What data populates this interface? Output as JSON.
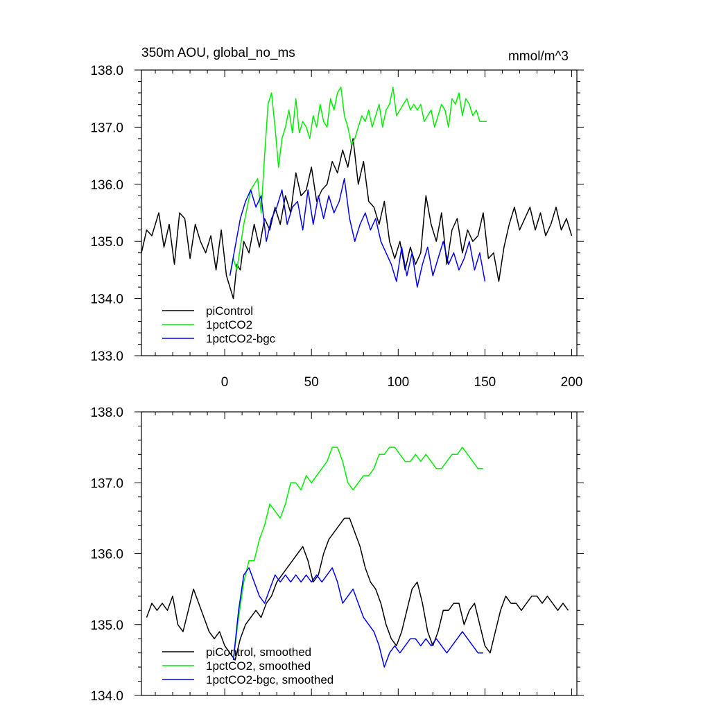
{
  "colors": {
    "piControl": "#000000",
    "1pctCO2": "#00ee00",
    "1pctCO2-bgc": "#0000ee"
  },
  "chart_data": [
    {
      "type": "line",
      "title": "350m AOU, global_no_ms",
      "title_right": "mmol/m^3",
      "xlim": [
        -48,
        203
      ],
      "ylim": [
        133.0,
        138.0
      ],
      "xticks": [
        0,
        50,
        100,
        150,
        200
      ],
      "xtick_labels": [
        "0",
        "50",
        "100",
        "150",
        "200"
      ],
      "yticks": [
        133.0,
        134.0,
        135.0,
        136.0,
        137.0,
        138.0
      ],
      "ytick_labels": [
        "133.0",
        "134.0",
        "135.0",
        "136.0",
        "137.0",
        "138.0"
      ],
      "legend_position": "bottom-left",
      "series": [
        {
          "name": "piControl",
          "color_key": "piControl",
          "x": [
            -48,
            -45,
            -42,
            -38,
            -35,
            -32,
            -29,
            -26,
            -23,
            -20,
            -17,
            -14,
            -11,
            -8,
            -5,
            -2,
            1,
            3,
            5,
            7,
            9,
            11,
            14,
            17,
            20,
            23,
            26,
            29,
            32,
            35,
            38,
            41,
            44,
            47,
            50,
            53,
            56,
            59,
            62,
            65,
            68,
            71,
            74,
            77,
            80,
            83,
            86,
            89,
            92,
            95,
            98,
            101,
            104,
            107,
            110,
            113,
            116,
            119,
            122,
            125,
            128,
            131,
            134,
            137,
            140,
            143,
            146,
            149,
            152,
            155,
            158,
            161,
            164,
            167,
            170,
            173,
            176,
            179,
            182,
            185,
            188,
            191,
            194,
            197,
            200
          ],
          "y": [
            134.8,
            135.2,
            135.1,
            135.5,
            134.9,
            135.3,
            134.6,
            135.5,
            135.4,
            134.7,
            135.3,
            135.0,
            134.8,
            135.1,
            134.5,
            135.2,
            134.4,
            134.2,
            134.0,
            134.6,
            134.5,
            135.0,
            134.8,
            135.3,
            134.9,
            135.4,
            135.2,
            135.6,
            135.3,
            135.8,
            135.5,
            136.2,
            135.8,
            135.9,
            136.3,
            135.7,
            135.9,
            136.0,
            136.4,
            136.2,
            136.6,
            136.3,
            136.8,
            136.0,
            136.4,
            135.7,
            135.6,
            135.3,
            135.7,
            135.0,
            134.7,
            135.0,
            134.5,
            134.9,
            134.6,
            134.8,
            135.8,
            135.3,
            135.0,
            135.5,
            134.6,
            135.2,
            135.4,
            134.8,
            135.2,
            135.0,
            135.1,
            135.5,
            134.7,
            134.8,
            134.3,
            134.9,
            135.3,
            135.6,
            135.2,
            135.4,
            135.6,
            135.2,
            135.5,
            135.1,
            135.3,
            135.6,
            135.2,
            135.4,
            135.1
          ]
        },
        {
          "name": "1pctCO2",
          "color_key": "1pctCO2",
          "x": [
            3,
            5,
            7,
            9,
            11,
            13,
            15,
            17,
            19,
            21,
            23,
            25,
            27,
            29,
            31,
            33,
            35,
            37,
            39,
            41,
            43,
            45,
            47,
            49,
            51,
            53,
            55,
            57,
            59,
            61,
            63,
            65,
            67,
            69,
            71,
            73,
            75,
            77,
            79,
            81,
            83,
            85,
            87,
            89,
            91,
            93,
            95,
            97,
            99,
            101,
            103,
            105,
            107,
            109,
            111,
            113,
            115,
            117,
            119,
            121,
            123,
            125,
            127,
            129,
            131,
            133,
            135,
            137,
            139,
            141,
            143,
            145,
            147,
            149,
            151
          ],
          "y": [
            134.4,
            134.7,
            134.5,
            134.9,
            135.3,
            135.6,
            135.9,
            136.0,
            136.1,
            135.5,
            136.5,
            137.4,
            137.6,
            137.0,
            136.3,
            136.8,
            137.0,
            137.3,
            136.9,
            137.5,
            136.9,
            137.1,
            137.0,
            136.8,
            137.2,
            137.0,
            137.4,
            137.1,
            137.0,
            137.5,
            137.3,
            137.6,
            137.7,
            137.2,
            137.0,
            136.7,
            136.8,
            137.0,
            137.2,
            137.1,
            137.3,
            137.0,
            137.2,
            137.4,
            137.0,
            137.3,
            137.4,
            137.7,
            137.2,
            137.3,
            137.4,
            137.5,
            137.3,
            137.4,
            137.3,
            137.4,
            137.1,
            137.2,
            137.3,
            137.0,
            137.2,
            137.4,
            137.3,
            137.0,
            137.5,
            137.4,
            137.6,
            137.2,
            137.5,
            137.4,
            137.2,
            137.3,
            137.1,
            137.1,
            137.1
          ]
        },
        {
          "name": "1pctCO2-bgc",
          "color_key": "1pctCO2-bgc",
          "x": [
            3,
            6,
            9,
            12,
            15,
            18,
            21,
            24,
            27,
            30,
            33,
            36,
            39,
            42,
            45,
            48,
            51,
            54,
            57,
            60,
            63,
            66,
            69,
            72,
            75,
            78,
            81,
            84,
            87,
            90,
            93,
            96,
            99,
            102,
            105,
            108,
            111,
            114,
            117,
            120,
            123,
            126,
            129,
            132,
            135,
            138,
            141,
            144,
            147,
            150
          ],
          "y": [
            134.4,
            134.9,
            135.4,
            135.7,
            135.9,
            135.6,
            135.8,
            135.0,
            135.4,
            135.6,
            135.9,
            135.3,
            135.6,
            135.7,
            135.2,
            135.9,
            135.3,
            135.8,
            135.4,
            135.8,
            135.5,
            135.7,
            136.1,
            135.4,
            135.0,
            135.3,
            135.5,
            135.2,
            135.4,
            135.0,
            134.8,
            134.6,
            134.3,
            134.9,
            134.4,
            134.8,
            134.2,
            134.6,
            134.9,
            134.4,
            134.7,
            135.0,
            134.6,
            134.8,
            134.5,
            134.7,
            135.0,
            134.5,
            134.8,
            134.3
          ]
        }
      ]
    },
    {
      "type": "line",
      "xlim": [
        -48,
        203
      ],
      "ylim": [
        134.0,
        138.0
      ],
      "xticks": [
        0,
        50,
        100,
        150,
        200
      ],
      "yticks": [
        134.0,
        135.0,
        136.0,
        137.0,
        138.0
      ],
      "ytick_labels": [
        "134.0",
        "135.0",
        "136.0",
        "137.0",
        "138.0"
      ],
      "legend_position": "bottom-left",
      "series": [
        {
          "name": "piControl, smoothed",
          "color_key": "piControl",
          "x": [
            -45,
            -42,
            -39,
            -36,
            -33,
            -30,
            -27,
            -24,
            -21,
            -18,
            -15,
            -12,
            -9,
            -6,
            -3,
            0,
            3,
            6,
            9,
            12,
            15,
            18,
            21,
            24,
            27,
            30,
            33,
            36,
            39,
            42,
            45,
            48,
            51,
            54,
            57,
            60,
            63,
            66,
            69,
            72,
            75,
            78,
            81,
            84,
            87,
            90,
            93,
            96,
            99,
            102,
            105,
            108,
            111,
            114,
            117,
            120,
            123,
            126,
            129,
            132,
            135,
            138,
            141,
            144,
            147,
            150,
            153,
            156,
            159,
            162,
            165,
            168,
            171,
            174,
            177,
            180,
            183,
            186,
            189,
            192,
            195,
            198
          ],
          "y": [
            135.1,
            135.3,
            135.2,
            135.3,
            135.2,
            135.4,
            135.0,
            134.9,
            135.2,
            135.5,
            135.3,
            135.1,
            134.9,
            134.8,
            134.9,
            134.7,
            134.6,
            134.5,
            134.8,
            135.0,
            135.1,
            135.2,
            135.1,
            135.3,
            135.4,
            135.6,
            135.7,
            135.8,
            135.9,
            136.0,
            136.1,
            135.9,
            135.6,
            135.7,
            136.0,
            136.2,
            136.3,
            136.4,
            136.5,
            136.5,
            136.3,
            136.1,
            135.8,
            135.6,
            135.5,
            135.3,
            135.0,
            134.8,
            134.7,
            134.9,
            135.2,
            135.5,
            135.6,
            135.3,
            134.9,
            134.7,
            134.9,
            135.2,
            135.2,
            135.3,
            135.3,
            135.0,
            135.2,
            135.3,
            135.0,
            134.7,
            134.6,
            134.9,
            135.2,
            135.4,
            135.3,
            135.3,
            135.2,
            135.3,
            135.4,
            135.4,
            135.3,
            135.4,
            135.3,
            135.2,
            135.3,
            135.2
          ]
        },
        {
          "name": "1pctCO2, smoothed",
          "color_key": "1pctCO2",
          "x": [
            5,
            8,
            11,
            14,
            17,
            20,
            23,
            26,
            29,
            32,
            35,
            38,
            41,
            44,
            47,
            50,
            53,
            56,
            59,
            62,
            65,
            68,
            71,
            74,
            77,
            80,
            83,
            86,
            89,
            92,
            95,
            98,
            101,
            104,
            107,
            110,
            113,
            116,
            119,
            122,
            125,
            128,
            131,
            134,
            137,
            140,
            143,
            146,
            149
          ],
          "y": [
            134.5,
            135.1,
            135.6,
            135.9,
            135.9,
            136.2,
            136.4,
            136.7,
            136.6,
            136.5,
            136.7,
            137.0,
            137.0,
            136.9,
            137.1,
            137.0,
            137.1,
            137.2,
            137.3,
            137.5,
            137.5,
            137.3,
            137.0,
            136.9,
            137.0,
            137.1,
            137.1,
            137.2,
            137.4,
            137.4,
            137.5,
            137.5,
            137.4,
            137.3,
            137.3,
            137.4,
            137.3,
            137.4,
            137.3,
            137.2,
            137.2,
            137.3,
            137.4,
            137.4,
            137.5,
            137.4,
            137.3,
            137.2,
            137.2
          ]
        },
        {
          "name": "1pctCO2-bgc, smoothed",
          "color_key": "1pctCO2-bgc",
          "x": [
            5,
            8,
            11,
            14,
            17,
            20,
            23,
            26,
            29,
            32,
            35,
            38,
            41,
            44,
            47,
            50,
            53,
            56,
            59,
            62,
            65,
            68,
            71,
            74,
            77,
            80,
            83,
            86,
            89,
            92,
            95,
            98,
            101,
            104,
            107,
            110,
            113,
            116,
            119,
            122,
            125,
            128,
            131,
            134,
            137,
            140,
            143,
            146,
            149
          ],
          "y": [
            134.5,
            135.2,
            135.7,
            135.8,
            135.6,
            135.4,
            135.3,
            135.5,
            135.7,
            135.6,
            135.7,
            135.6,
            135.7,
            135.6,
            135.7,
            135.6,
            135.7,
            135.6,
            135.7,
            135.8,
            135.6,
            135.3,
            135.4,
            135.5,
            135.3,
            135.1,
            135.0,
            134.9,
            134.7,
            134.4,
            134.6,
            134.7,
            134.6,
            134.7,
            134.8,
            134.8,
            134.7,
            134.8,
            134.7,
            134.8,
            134.7,
            134.6,
            134.7,
            134.8,
            134.9,
            134.8,
            134.7,
            134.6,
            134.6
          ]
        }
      ]
    }
  ]
}
